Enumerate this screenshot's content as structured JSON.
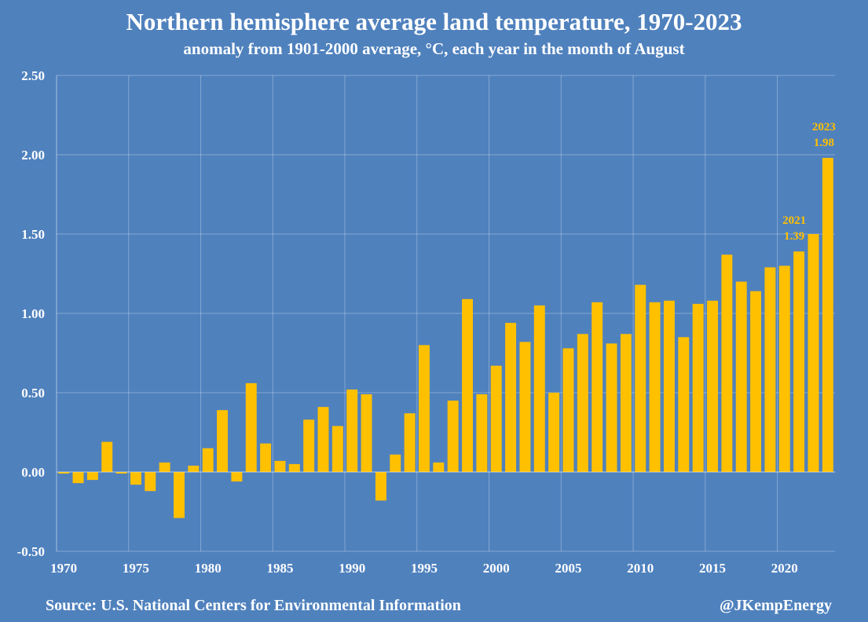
{
  "chart_data": {
    "type": "bar",
    "title": "Northern hemisphere average land temperature, 1970-2023",
    "subtitle": "anomaly from 1901-2000 average, °C, each year in the month of August",
    "xlabel": "",
    "ylabel": "",
    "ylim": [
      -0.5,
      2.5
    ],
    "yticks": [
      2.5,
      2.0,
      1.5,
      1.0,
      0.5,
      0.0,
      -0.5
    ],
    "ytick_labels": [
      "2.50",
      "2.00",
      "1.50",
      "1.00",
      "0.50",
      "0.00",
      "-0.50"
    ],
    "xtick_labels": [
      "1970",
      "1975",
      "1980",
      "1985",
      "1990",
      "1995",
      "2000",
      "2005",
      "2010",
      "2015",
      "2020"
    ],
    "grid": true,
    "categories": [
      1970,
      1971,
      1972,
      1973,
      1974,
      1975,
      1976,
      1977,
      1978,
      1979,
      1980,
      1981,
      1982,
      1983,
      1984,
      1985,
      1986,
      1987,
      1988,
      1989,
      1990,
      1991,
      1992,
      1993,
      1994,
      1995,
      1996,
      1997,
      1998,
      1999,
      2000,
      2001,
      2002,
      2003,
      2004,
      2005,
      2006,
      2007,
      2008,
      2009,
      2010,
      2011,
      2012,
      2013,
      2014,
      2015,
      2016,
      2017,
      2018,
      2019,
      2020,
      2021,
      2022,
      2023
    ],
    "values": [
      -0.01,
      -0.07,
      -0.05,
      0.19,
      -0.01,
      -0.08,
      -0.12,
      0.06,
      -0.29,
      0.04,
      0.15,
      0.39,
      -0.06,
      0.56,
      0.18,
      0.07,
      0.05,
      0.33,
      0.41,
      0.29,
      0.52,
      0.49,
      -0.18,
      0.11,
      0.37,
      0.8,
      0.06,
      0.45,
      1.09,
      0.49,
      0.67,
      0.94,
      0.82,
      1.05,
      0.5,
      0.78,
      0.87,
      1.07,
      0.81,
      0.87,
      1.18,
      1.07,
      1.08,
      0.85,
      1.06,
      1.08,
      1.37,
      1.2,
      1.14,
      1.29,
      1.3,
      1.39,
      1.5,
      1.98
    ],
    "annotations": [
      {
        "year": "2021",
        "value": "1.39"
      },
      {
        "year": "2023",
        "value": "1.98"
      }
    ],
    "colors": {
      "background": "#4f81bd",
      "bar": "#ffc000",
      "annotation": "#ffc000"
    }
  },
  "footer": {
    "source": "Source: U.S. National Centers for Environmental Information",
    "credit": "@JKempEnergy"
  }
}
